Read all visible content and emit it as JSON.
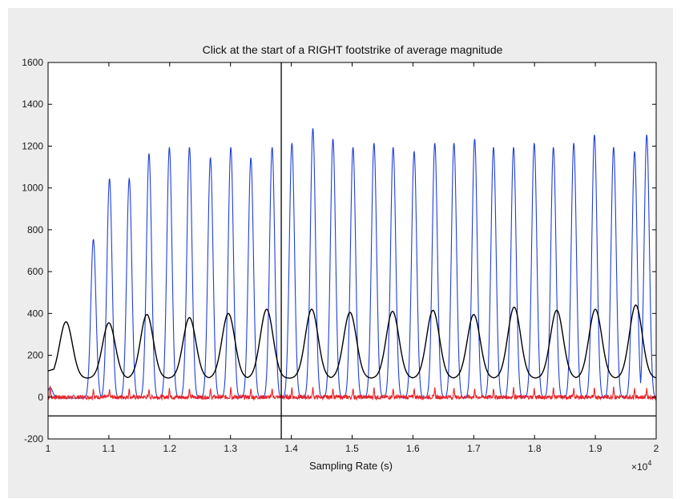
{
  "chart_data": {
    "type": "line",
    "title": "Click at the start of a RIGHT footstrike of average magnitude",
    "xlabel": "Sampling Rate (s)",
    "ylabel": "",
    "x_multiplier": "×10",
    "x_multiplier_exp": "4",
    "xlim": [
      1,
      2
    ],
    "ylim": [
      -200,
      1600
    ],
    "x_ticks": [
      "1",
      "1.1",
      "1.2",
      "1.3",
      "1.4",
      "1.5",
      "1.6",
      "1.7",
      "1.8",
      "1.9",
      "2"
    ],
    "x_tick_values": [
      1,
      1.1,
      1.2,
      1.3,
      1.4,
      1.5,
      1.6,
      1.7,
      1.8,
      1.9,
      2
    ],
    "y_ticks": [
      "-200",
      "0",
      "200",
      "400",
      "600",
      "800",
      "1000",
      "1200",
      "1400",
      "1600"
    ],
    "y_tick_values": [
      -200,
      0,
      200,
      400,
      600,
      800,
      1000,
      1200,
      1400,
      1600
    ],
    "grid": false,
    "cursor_x": 1.3835,
    "baseline_y": -90,
    "series": [
      {
        "color": "#1f3fd6",
        "style": "blue-spikes",
        "peak_x": [
          1.0035,
          1.0745,
          1.101,
          1.1335,
          1.166,
          1.1995,
          1.2325,
          1.267,
          1.3005,
          1.3335,
          1.3685,
          1.401,
          1.4355,
          1.4685,
          1.5015,
          1.536,
          1.5675,
          1.602,
          1.636,
          1.6675,
          1.7015,
          1.7325,
          1.7655,
          1.7995,
          1.831,
          1.8645,
          1.8985,
          1.93,
          1.9645,
          1.9845
        ],
        "peak_y": [
          50,
          760,
          1050,
          1050,
          1170,
          1200,
          1200,
          1150,
          1200,
          1150,
          1200,
          1220,
          1290,
          1240,
          1200,
          1220,
          1200,
          1180,
          1220,
          1220,
          1240,
          1200,
          1200,
          1220,
          1200,
          1220,
          1260,
          1200,
          1180,
          1260
        ]
      },
      {
        "color": "#000000",
        "style": "black-smooth",
        "peak_x": [
          1.0295,
          1.1,
          1.1625,
          1.2325,
          1.2965,
          1.3595,
          1.4335,
          1.4965,
          1.5665,
          1.633,
          1.7,
          1.7665,
          1.8365,
          1.9,
          1.9665
        ],
        "peak_y": [
          360,
          355,
          395,
          380,
          400,
          420,
          420,
          405,
          410,
          415,
          395,
          430,
          415,
          420,
          440
        ],
        "trough": 90
      },
      {
        "color": "#e8232a",
        "style": "red-noise",
        "peak_x": [
          1.0035,
          1.0745,
          1.101,
          1.1335,
          1.166,
          1.1995,
          1.2325,
          1.267,
          1.3005,
          1.3335,
          1.3685,
          1.401,
          1.4355,
          1.4685,
          1.5015,
          1.536,
          1.5675,
          1.602,
          1.636,
          1.6675,
          1.7015,
          1.7325,
          1.7655,
          1.7995,
          1.831,
          1.8645,
          1.8985,
          1.93,
          1.9645,
          1.9845
        ],
        "peak_y": [
          60,
          40,
          40,
          45,
          40,
          45,
          45,
          45,
          50,
          45,
          45,
          50,
          50,
          45,
          45,
          50,
          45,
          45,
          50,
          50,
          45,
          45,
          50,
          45,
          50,
          45,
          50,
          50,
          45,
          45
        ],
        "noise_amp": 20
      }
    ]
  }
}
